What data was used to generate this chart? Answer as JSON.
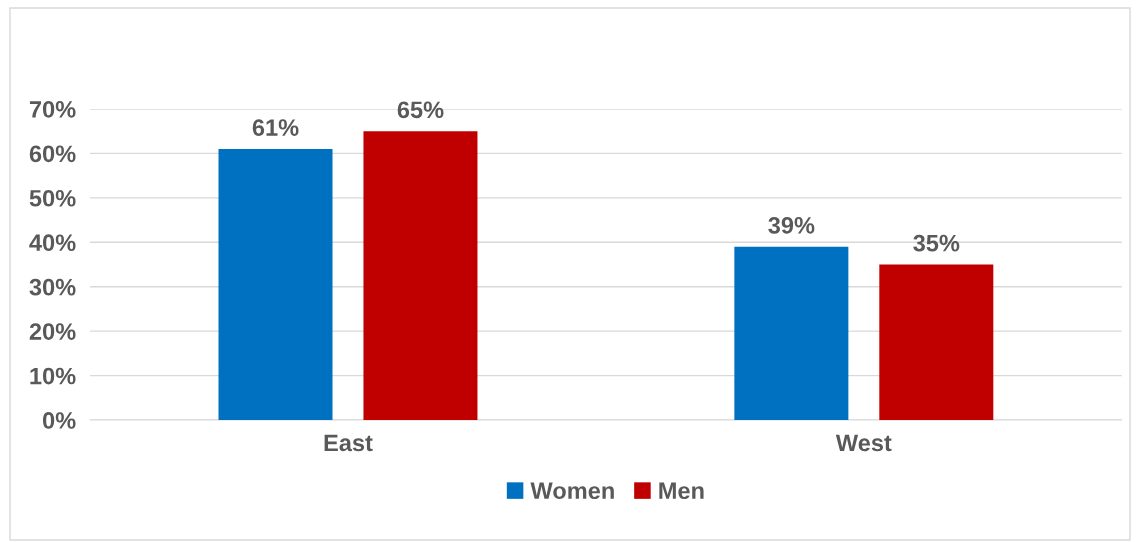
{
  "chart_data": {
    "type": "bar",
    "categories": [
      "East",
      "West"
    ],
    "series": [
      {
        "name": "Women",
        "color": "#0070c0",
        "values": [
          61,
          39
        ],
        "value_labels": [
          "61%",
          "39%"
        ]
      },
      {
        "name": "Men",
        "color": "#c00000",
        "values": [
          65,
          35
        ],
        "value_labels": [
          "65%",
          "35%"
        ]
      }
    ],
    "ylim": [
      0,
      70
    ],
    "yticks": [
      {
        "value": 0,
        "label": "0%"
      },
      {
        "value": 10,
        "label": "10%"
      },
      {
        "value": 20,
        "label": "20%"
      },
      {
        "value": 30,
        "label": "30%"
      },
      {
        "value": 40,
        "label": "40%"
      },
      {
        "value": 50,
        "label": "50%"
      },
      {
        "value": 60,
        "label": "60%"
      },
      {
        "value": 70,
        "label": "70%"
      }
    ],
    "grid": "y",
    "legend": "bottom"
  }
}
